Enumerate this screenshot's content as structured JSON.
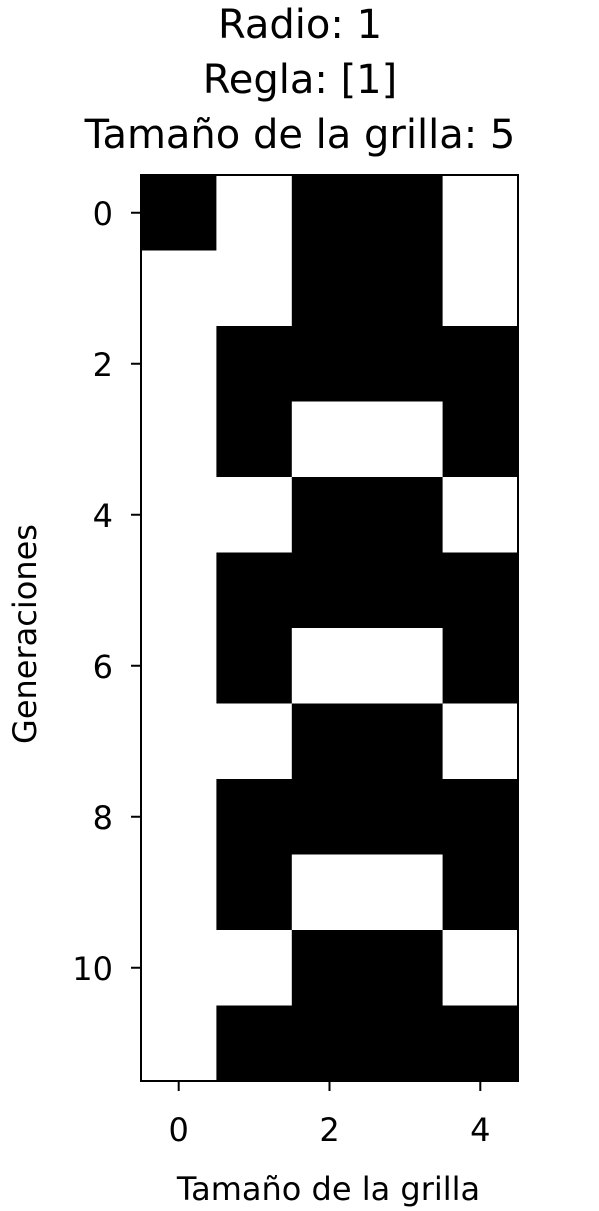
{
  "chart_data": {
    "type": "heatmap",
    "title_lines": [
      "Radio: 1",
      "Regla: [1]",
      "Tamaño de la grilla: 5"
    ],
    "xlabel": "Tamaño de la grilla",
    "ylabel": "Generaciones",
    "xlim": [
      -0.5,
      4.5
    ],
    "ylim": [
      11.5,
      -0.5
    ],
    "xticks": [
      0,
      2,
      4
    ],
    "yticks": [
      0,
      2,
      4,
      6,
      8,
      10
    ],
    "grid": false,
    "colormap": {
      "0": "#ffffff",
      "1": "#000000"
    },
    "matrix": [
      [
        1,
        0,
        1,
        1,
        0
      ],
      [
        0,
        0,
        1,
        1,
        0
      ],
      [
        0,
        1,
        1,
        1,
        1
      ],
      [
        0,
        1,
        0,
        0,
        1
      ],
      [
        0,
        0,
        1,
        1,
        0
      ],
      [
        0,
        1,
        1,
        1,
        1
      ],
      [
        0,
        1,
        0,
        0,
        1
      ],
      [
        0,
        0,
        1,
        1,
        0
      ],
      [
        0,
        1,
        1,
        1,
        1
      ],
      [
        0,
        1,
        0,
        0,
        1
      ],
      [
        0,
        0,
        1,
        1,
        0
      ],
      [
        0,
        1,
        1,
        1,
        1
      ]
    ]
  }
}
